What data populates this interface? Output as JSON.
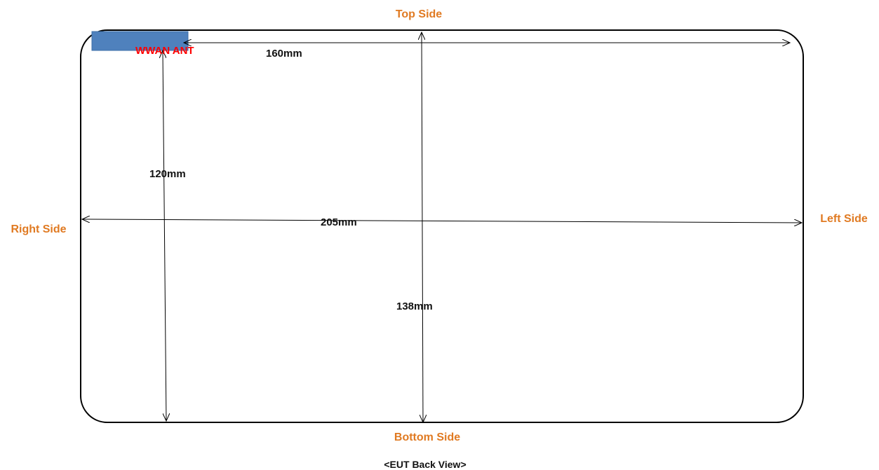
{
  "sides": {
    "top": "Top Side",
    "bottom": "Bottom Side",
    "right": "Right Side",
    "left": "Left Side"
  },
  "dimensions": {
    "width_top": "160mm",
    "antenna_to_bottom": "120mm",
    "overall_width": "205mm",
    "overall_height": "138mm"
  },
  "antenna": {
    "label": "WWAN ANT"
  },
  "caption": "<EUT Back View>",
  "colors": {
    "side_label": "#e07a22",
    "antenna_label": "#ff0000",
    "antenna_fill": "#4f81bd",
    "outline": "#000000"
  }
}
